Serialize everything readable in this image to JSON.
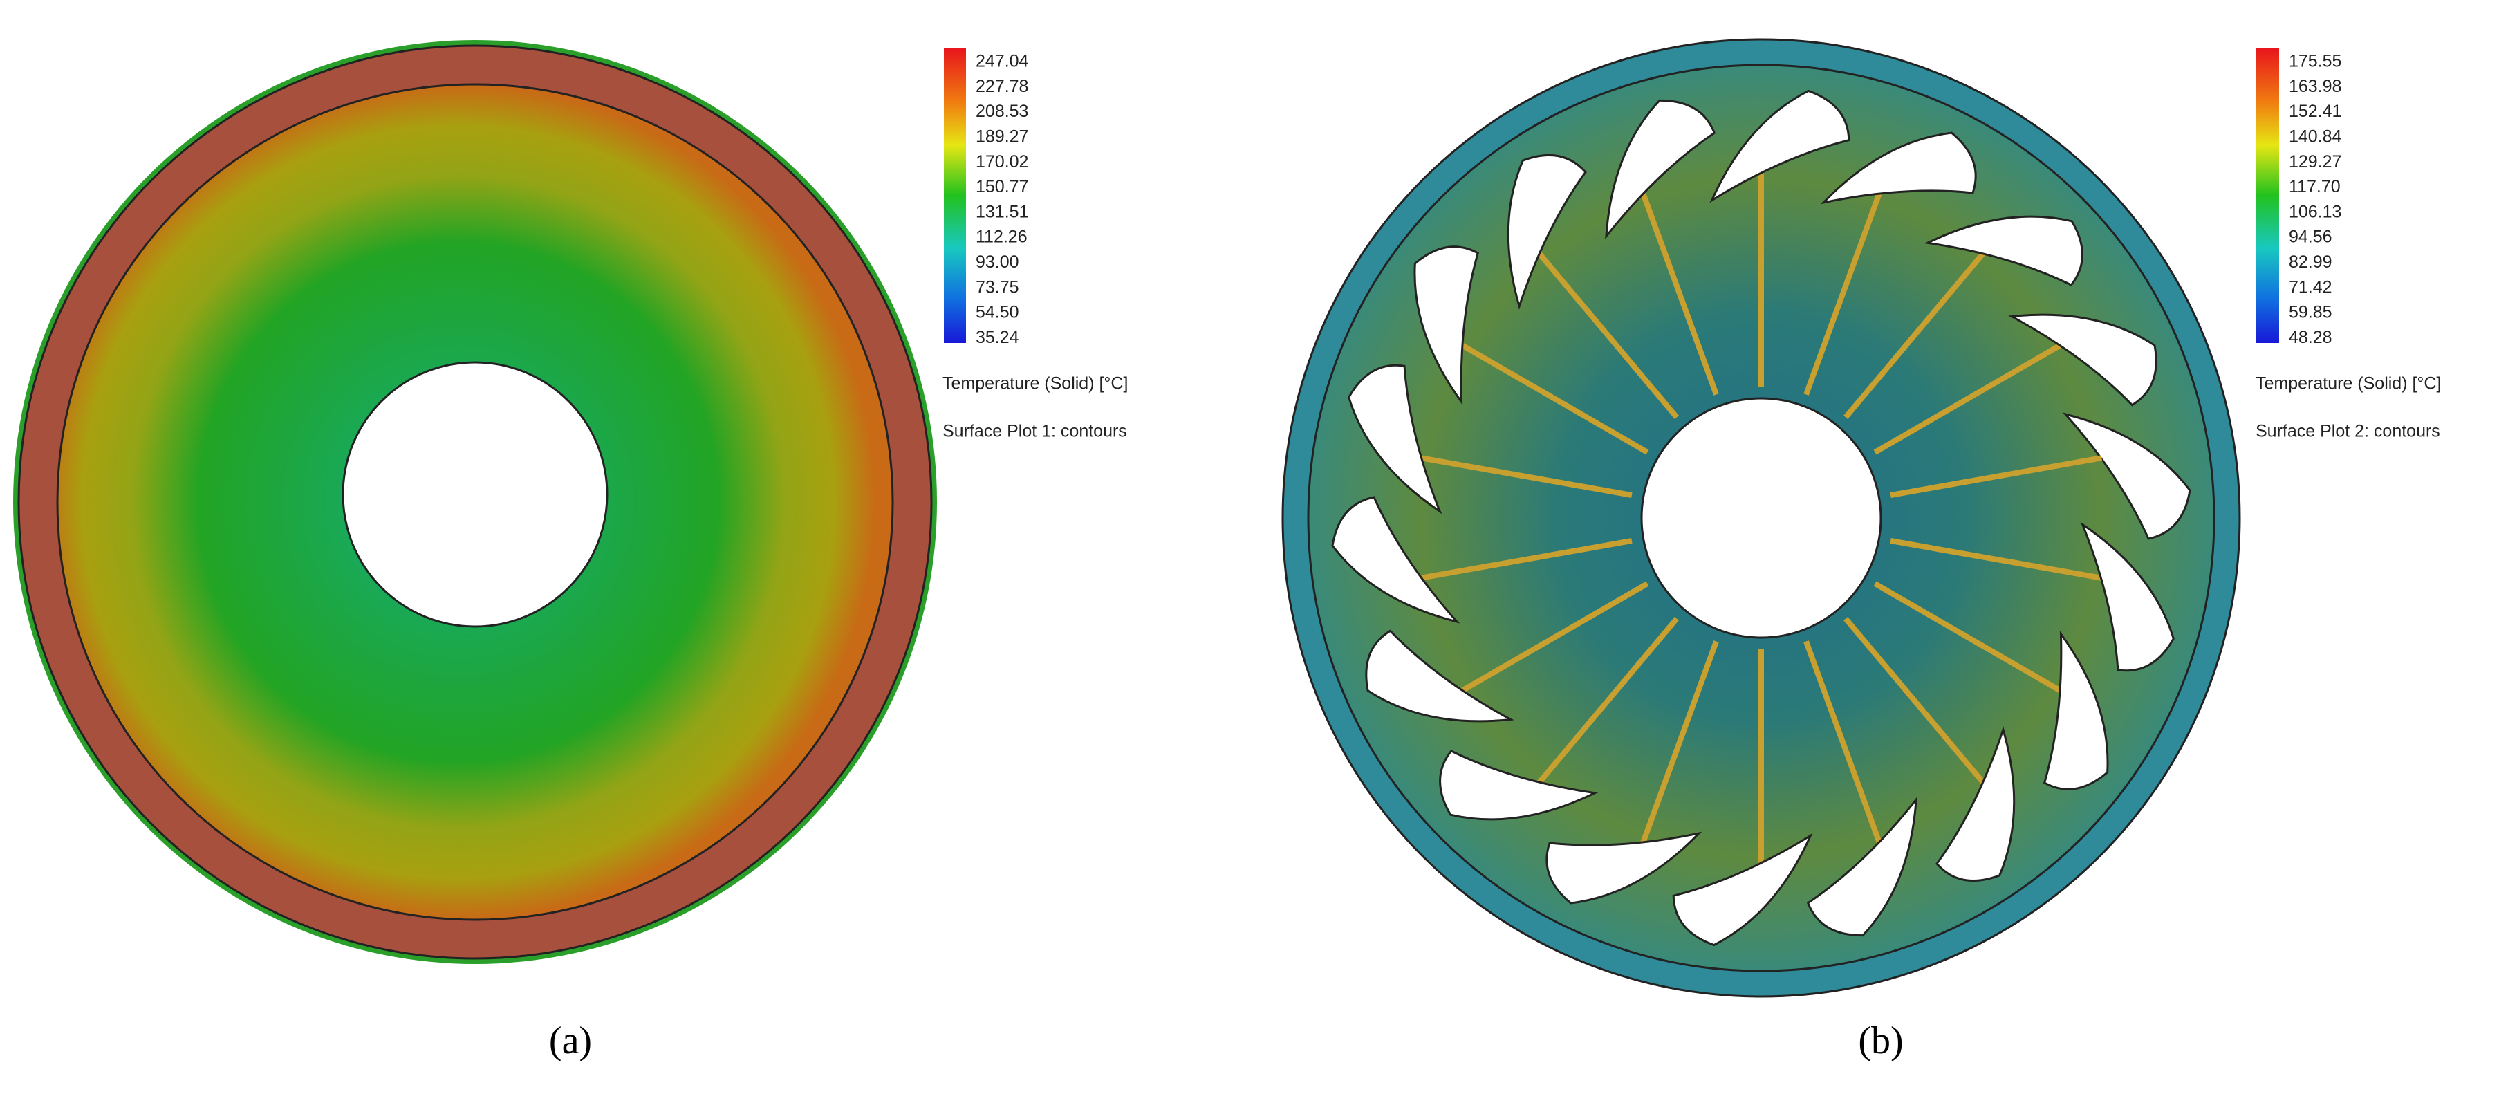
{
  "panels": [
    {
      "colorbar": {
        "ticks": [
          "247.04",
          "227.78",
          "208.53",
          "189.27",
          "170.02",
          "150.77",
          "131.51",
          "112.26",
          "93.00",
          "73.75",
          "54.50",
          "35.24"
        ],
        "title": "Temperature (Solid) [°C]"
      },
      "plot_name": "Surface Plot 1: contours",
      "label": "(a)"
    },
    {
      "colorbar": {
        "ticks": [
          "175.55",
          "163.98",
          "152.41",
          "140.84",
          "129.27",
          "117.70",
          "106.13",
          "94.56",
          "82.99",
          "71.42",
          "59.85",
          "48.28"
        ],
        "title": "Temperature (Solid) [°C]"
      },
      "plot_name": "Surface Plot 2: contours",
      "label": "(b)"
    }
  ]
}
